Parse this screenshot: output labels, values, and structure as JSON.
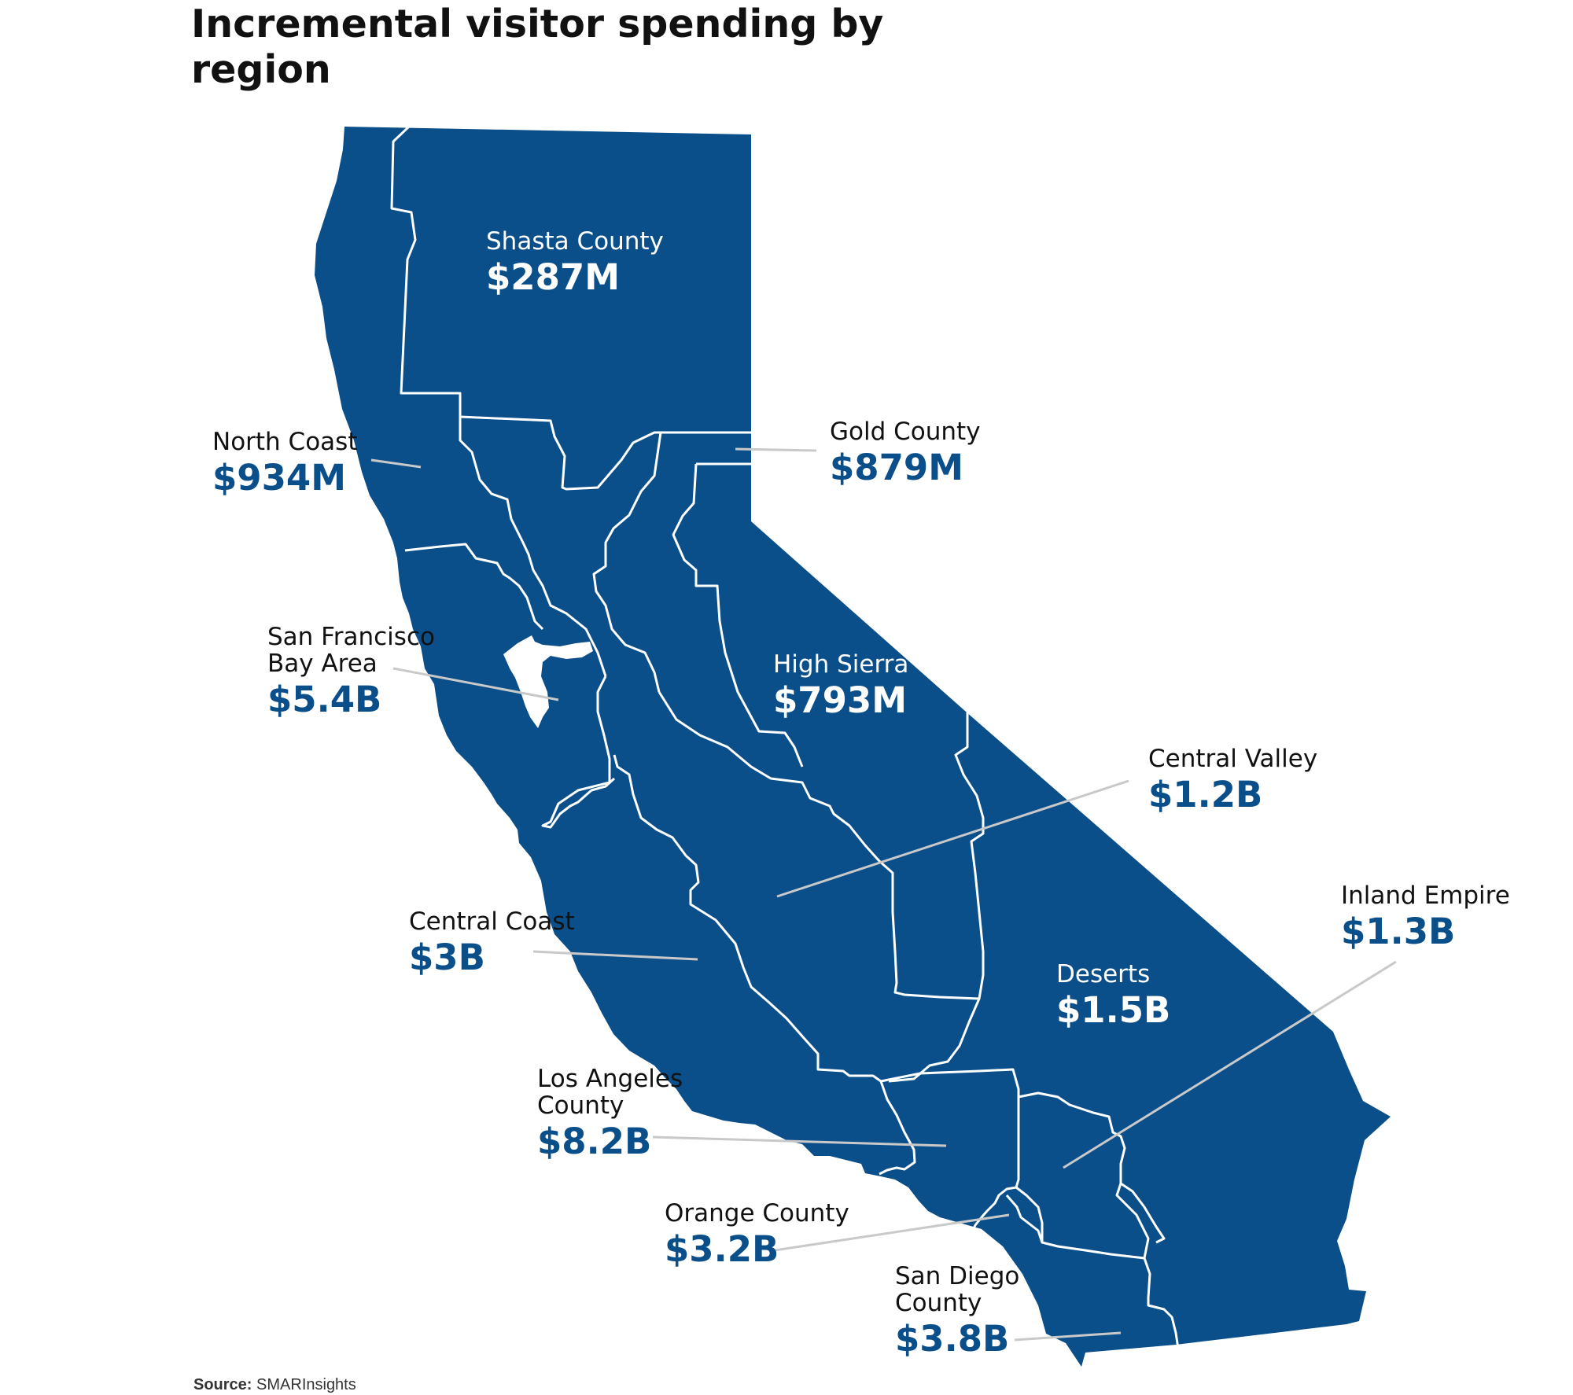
{
  "title": "Incremental visitor spending by region",
  "colors": {
    "region_fill": "#0a4f8a",
    "border": "#ffffff",
    "leader_line": "#c9c9c9",
    "value_text": "#0a4f8a"
  },
  "regions": [
    {
      "id": "shasta-county",
      "name": "Shasta County",
      "value": "$287M"
    },
    {
      "id": "north-coast",
      "name": "North Coast",
      "value": "$934M"
    },
    {
      "id": "gold-county",
      "name": "Gold County",
      "value": "$879M"
    },
    {
      "id": "sf-bay-area",
      "name": "San Francisco\nBay Area",
      "value": "$5.4B"
    },
    {
      "id": "high-sierra",
      "name": "High Sierra",
      "value": "$793M"
    },
    {
      "id": "central-valley",
      "name": "Central Valley",
      "value": "$1.2B"
    },
    {
      "id": "central-coast",
      "name": "Central Coast",
      "value": "$3B"
    },
    {
      "id": "inland-empire",
      "name": "Inland Empire",
      "value": "$1.3B"
    },
    {
      "id": "deserts",
      "name": "Deserts",
      "value": "$1.5B"
    },
    {
      "id": "los-angeles-county",
      "name": "Los Angeles\nCounty",
      "value": "$8.2B"
    },
    {
      "id": "orange-county",
      "name": "Orange County",
      "value": "$3.2B"
    },
    {
      "id": "san-diego-county",
      "name": "San Diego\nCounty",
      "value": "$3.8B"
    }
  ],
  "source": {
    "label": "Source:",
    "text": "SMARInsights"
  }
}
